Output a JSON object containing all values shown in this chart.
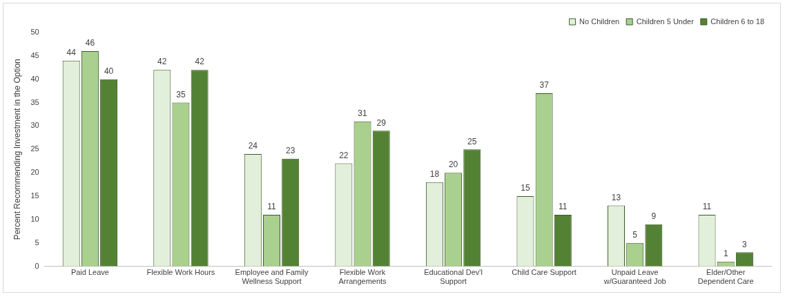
{
  "chart_data": {
    "type": "bar",
    "ylabel": "Percent Recommending Investment in the Option",
    "categories": [
      "Paid Leave",
      "Flexible Work Hours",
      "Employee and Family\nWellness Support",
      "Flexible Work\nArrangements",
      "Educational Dev'l\nSupport",
      "Child Care Support",
      "Unpaid Leave\nw/Guaranteed Job",
      "Elder/Other\nDependent Care"
    ],
    "series": [
      {
        "name": "No Children",
        "color": "#e2efda",
        "values": [
          44,
          42,
          24,
          22,
          18,
          15,
          13,
          11
        ]
      },
      {
        "name": "Children 5 Under",
        "color": "#a9d08e",
        "values": [
          46,
          35,
          11,
          31,
          20,
          37,
          5,
          1
        ]
      },
      {
        "name": "Children 6 to 18",
        "color": "#548235",
        "values": [
          40,
          42,
          23,
          29,
          25,
          11,
          9,
          3
        ]
      }
    ],
    "ylim": [
      0,
      50
    ],
    "yticks": [
      0,
      5,
      10,
      15,
      20,
      25,
      30,
      35,
      40,
      45,
      50
    ],
    "grid": false,
    "legend": "top right",
    "data_labels": true
  }
}
